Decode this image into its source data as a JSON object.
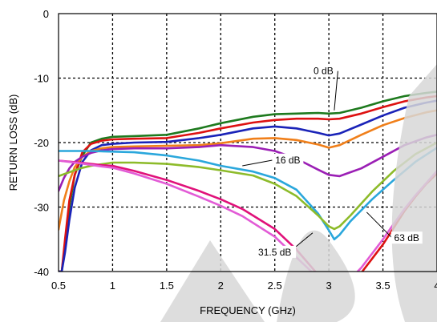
{
  "chart_data": {
    "type": "line",
    "title": "",
    "xlabel": "FREQUENCY (GHz)",
    "ylabel": "RETURN LOSS (dB)",
    "xlim": [
      0.5,
      4
    ],
    "ylim": [
      -40,
      0
    ],
    "xticks": [
      0.5,
      1,
      1.5,
      2,
      2.5,
      3,
      3.5,
      4
    ],
    "yticks": [
      0,
      -10,
      -20,
      -30,
      -40
    ],
    "xtick_labels": [
      "0.5",
      "1",
      "1.5",
      "2",
      "2.5",
      "3",
      "3.5",
      "4"
    ],
    "ytick_labels": [
      "0",
      "-10",
      "-20",
      "-30",
      "-40"
    ],
    "grid": true,
    "annotations": [
      {
        "text": "0 dB",
        "x": 2.95,
        "y": -9.4,
        "points_to": [
          3.05,
          -15.0
        ]
      },
      {
        "text": "16 dB",
        "x": 2.62,
        "y": -23.2,
        "points_to": [
          2.2,
          -23.6
        ]
      },
      {
        "text": "31.5 dB",
        "x": 2.5,
        "y": -37.5,
        "points_to": [
          2.85,
          -34.0
        ]
      },
      {
        "text": "63 dB",
        "x": 3.72,
        "y": -35.3,
        "points_to": [
          3.35,
          -30.8
        ]
      }
    ],
    "series": [
      {
        "color": "#1e7a1e",
        "x": [
          0.5,
          0.53,
          0.56,
          0.6,
          0.65,
          0.72,
          0.8,
          0.9,
          1.0,
          1.2,
          1.5,
          1.8,
          2.0,
          2.3,
          2.5,
          2.7,
          2.9,
          3.0,
          3.1,
          3.3,
          3.5,
          3.7,
          3.9,
          4.0
        ],
        "y": [
          -40,
          -40,
          -36,
          -30,
          -25,
          -22,
          -20,
          -19.4,
          -19.1,
          -19.0,
          -18.8,
          -17.8,
          -17.0,
          -16.0,
          -15.6,
          -15.5,
          -15.4,
          -15.5,
          -15.4,
          -14.6,
          -13.6,
          -12.8,
          -12.3,
          -12.1
        ]
      },
      {
        "color": "#dd1111",
        "x": [
          0.5,
          0.53,
          0.56,
          0.6,
          0.65,
          0.72,
          0.8,
          0.9,
          1.0,
          1.2,
          1.5,
          1.8,
          2.0,
          2.3,
          2.5,
          2.7,
          2.9,
          3.0,
          3.1,
          3.3,
          3.5,
          3.7,
          3.9,
          4.0
        ],
        "y": [
          -40,
          -40,
          -35,
          -29,
          -25,
          -21.5,
          -20.2,
          -19.7,
          -19.5,
          -19.4,
          -19.3,
          -18.5,
          -17.8,
          -16.9,
          -16.5,
          -16.3,
          -16.3,
          -16.4,
          -16.3,
          -15.5,
          -14.5,
          -13.6,
          -13.0,
          -12.8
        ]
      },
      {
        "color": "#1a23b8",
        "x": [
          0.5,
          0.53,
          0.56,
          0.6,
          0.65,
          0.72,
          0.8,
          0.9,
          1.0,
          1.2,
          1.5,
          1.8,
          2.0,
          2.3,
          2.5,
          2.7,
          2.9,
          3.0,
          3.1,
          3.3,
          3.5,
          3.7,
          3.9,
          4.0
        ],
        "y": [
          -40,
          -40,
          -37,
          -32,
          -27,
          -23,
          -21.2,
          -20.4,
          -20.2,
          -20.0,
          -19.9,
          -19.3,
          -18.8,
          -17.8,
          -17.5,
          -17.8,
          -18.5,
          -18.9,
          -18.6,
          -17.2,
          -15.8,
          -14.6,
          -13.8,
          -13.5
        ]
      },
      {
        "color": "#f07f1a",
        "x": [
          0.5,
          0.55,
          0.6,
          0.65,
          0.72,
          0.8,
          0.9,
          1.0,
          1.2,
          1.5,
          1.8,
          2.0,
          2.3,
          2.5,
          2.7,
          2.9,
          3.0,
          3.1,
          3.3,
          3.5,
          3.7,
          3.9,
          4.0
        ],
        "y": [
          -33.5,
          -29,
          -26,
          -23.8,
          -22.2,
          -21.3,
          -20.9,
          -20.7,
          -20.6,
          -20.5,
          -20.4,
          -20.1,
          -19.4,
          -19.3,
          -19.6,
          -20.3,
          -20.8,
          -20.4,
          -18.8,
          -17.3,
          -16.2,
          -15.3,
          -15.0
        ]
      },
      {
        "color": "#9b1fb5",
        "x": [
          0.5,
          0.55,
          0.6,
          0.65,
          0.72,
          0.8,
          0.9,
          1.0,
          1.2,
          1.5,
          1.8,
          2.0,
          2.3,
          2.5,
          2.7,
          2.9,
          3.0,
          3.1,
          3.2,
          3.3,
          3.5,
          3.7,
          3.9,
          4.0
        ],
        "y": [
          -27.5,
          -25.5,
          -24.0,
          -23.0,
          -22.2,
          -21.6,
          -21.2,
          -21.0,
          -20.9,
          -20.9,
          -20.7,
          -20.4,
          -20.7,
          -21.3,
          -22.5,
          -24.2,
          -25.0,
          -25.2,
          -24.6,
          -24.0,
          -22.2,
          -20.4,
          -19.2,
          -18.8
        ]
      },
      {
        "color": "#2aa7dc",
        "x": [
          0.5,
          0.6,
          0.8,
          1.0,
          1.2,
          1.5,
          1.8,
          2.0,
          2.3,
          2.5,
          2.7,
          2.9,
          3.0,
          3.05,
          3.1,
          3.2,
          3.4,
          3.6,
          3.8,
          4.0
        ],
        "y": [
          -21.3,
          -21.3,
          -21.3,
          -21.4,
          -21.5,
          -22.0,
          -22.8,
          -23.6,
          -24.5,
          -25.5,
          -27.3,
          -31.0,
          -33.6,
          -35.0,
          -34.3,
          -32.2,
          -28.8,
          -25.8,
          -23.0,
          -20.8
        ]
      },
      {
        "color": "#8dbb2a",
        "x": [
          0.5,
          0.6,
          0.7,
          0.8,
          1.0,
          1.2,
          1.5,
          1.8,
          2.0,
          2.3,
          2.5,
          2.7,
          2.9,
          3.0,
          3.05,
          3.1,
          3.2,
          3.4,
          3.6,
          3.8,
          4.0
        ],
        "y": [
          -25.2,
          -24.6,
          -24.0,
          -23.6,
          -23.1,
          -23.1,
          -23.3,
          -23.8,
          -24.3,
          -25.1,
          -26.4,
          -28.3,
          -31.3,
          -33.0,
          -33.4,
          -33.0,
          -31.3,
          -27.6,
          -24.4,
          -21.8,
          -20.0
        ]
      },
      {
        "color": "#e0117a",
        "x": [
          0.5,
          0.7,
          0.9,
          1.0,
          1.2,
          1.5,
          1.8,
          2.0,
          2.2,
          2.5,
          2.7,
          2.9,
          2.95
        ],
        "y": [
          -22.8,
          -23.1,
          -23.5,
          -23.6,
          -24.4,
          -25.8,
          -27.5,
          -28.8,
          -30.3,
          -33.4,
          -36.6,
          -40.5,
          -42
        ]
      },
      {
        "color": "#dd1111",
        "x": [
          3.2,
          3.3,
          3.4,
          3.5,
          3.6,
          3.7,
          3.8,
          3.9,
          4.0
        ],
        "y": [
          -42,
          -40.2,
          -38.0,
          -35.8,
          -33.2,
          -30.6,
          -28.4,
          -26.4,
          -24.8
        ]
      },
      {
        "color": "#e25bd6",
        "x": [
          0.5,
          0.7,
          0.9,
          1.0,
          1.2,
          1.5,
          1.8,
          2.0,
          2.2,
          2.5,
          2.7,
          2.9,
          3.0
        ],
        "y": [
          -22.8,
          -23.2,
          -23.7,
          -23.9,
          -24.8,
          -26.4,
          -28.4,
          -29.8,
          -31.4,
          -34.6,
          -37.8,
          -41.0,
          -42
        ]
      },
      {
        "color": "#e25bd6",
        "x": [
          3.15,
          3.3,
          3.4,
          3.5,
          3.6,
          3.7,
          3.8,
          3.9,
          4.0
        ],
        "y": [
          -42,
          -39.4,
          -37.2,
          -35.0,
          -32.6,
          -30.3,
          -28.2,
          -26.3,
          -24.4
        ]
      }
    ]
  }
}
